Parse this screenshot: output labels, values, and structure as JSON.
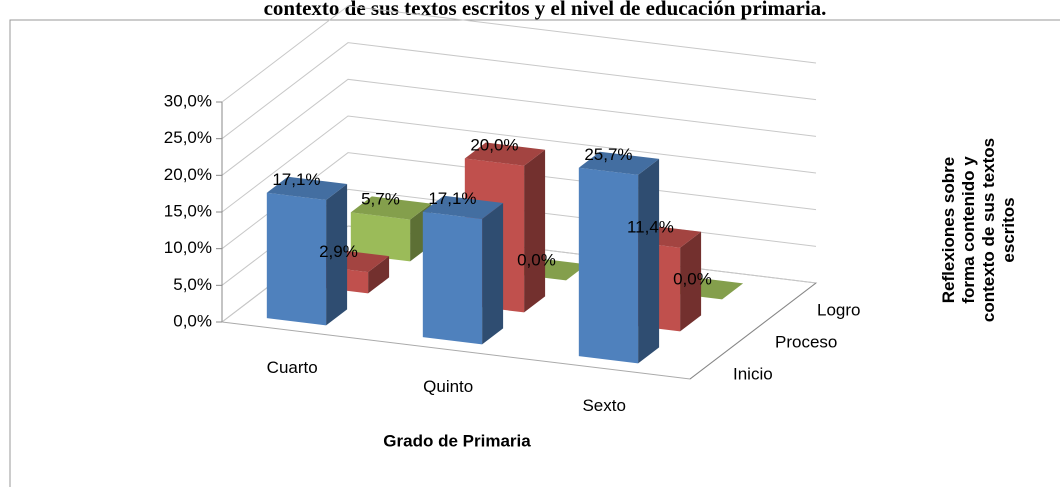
{
  "chart_data": {
    "type": "bar3d",
    "title": "contexto de sus textos escritos y el nivel de educación primaria.",
    "x_label": "Grado de Primaria",
    "z_label": "Reflexiones sobre forma contenido y contexto de sus textos escritos",
    "categories": [
      "Cuarto",
      "Quinto",
      "Sexto"
    ],
    "series": [
      {
        "name": "Inicio",
        "color": "#4f81bd",
        "values": [
          17.1,
          17.1,
          25.7
        ],
        "value_labels": [
          "17,1%",
          "17,1%",
          "25,7%"
        ]
      },
      {
        "name": "Proceso",
        "color": "#c0504d",
        "values": [
          2.9,
          20.0,
          11.4
        ],
        "value_labels": [
          "2,9%",
          "20,0%",
          "11,4%"
        ]
      },
      {
        "name": "Logro",
        "color": "#9bbb59",
        "values": [
          5.7,
          0.0,
          0.0
        ],
        "value_labels": [
          "5,7%",
          "0,0%",
          "0,0%"
        ]
      }
    ],
    "ylim": [
      0,
      30
    ],
    "yticks": [
      {
        "value": 0,
        "label": "0,0%"
      },
      {
        "value": 5,
        "label": "5,0%"
      },
      {
        "value": 10,
        "label": "10,0%"
      },
      {
        "value": 15,
        "label": "15,0%"
      },
      {
        "value": 20,
        "label": "20,0%"
      },
      {
        "value": 25,
        "label": "25,0%"
      },
      {
        "value": 30,
        "label": "30,0%"
      }
    ],
    "grid": true
  }
}
